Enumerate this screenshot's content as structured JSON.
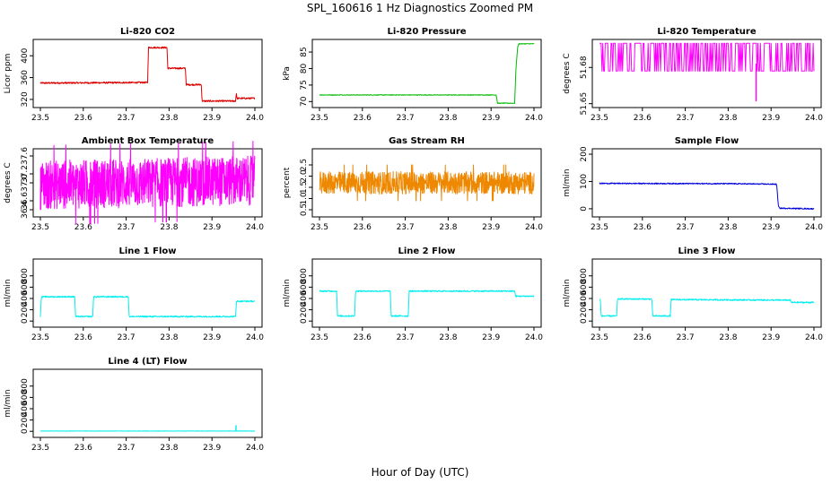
{
  "figure": {
    "title": "SPL_160616  1 Hz Diagnostics Zoomed PM",
    "xlabel": "Hour of Day (UTC)"
  },
  "chart_data": [
    {
      "type": "line",
      "title": "Li-820 CO2",
      "ylabel": "Licor ppm",
      "color": "#dd0000",
      "xlim": [
        23.5,
        24.0
      ],
      "xticks": [
        "23.5",
        "23.6",
        "23.7",
        "23.8",
        "23.9",
        "24.0"
      ],
      "ylim": [
        310,
        425
      ],
      "yticks": [
        {
          "v": 320,
          "label": "320"
        },
        {
          "v": 360,
          "label": "360"
        },
        {
          "v": 400,
          "label": "400"
        }
      ],
      "noise": 1.5,
      "x": [
        23.5,
        23.75,
        23.752,
        23.795,
        23.797,
        23.838,
        23.84,
        23.875,
        23.877,
        23.955,
        23.957,
        23.958,
        23.96,
        24.0
      ],
      "y": [
        350,
        351,
        415,
        415,
        377,
        377,
        347,
        347,
        317,
        317,
        333,
        322,
        322,
        322
      ]
    },
    {
      "type": "line",
      "title": "Li-820 Pressure",
      "ylabel": "kPa",
      "color": "#00bb00",
      "xlim": [
        23.5,
        24.0
      ],
      "xticks": [
        "23.5",
        "23.6",
        "23.7",
        "23.8",
        "23.9",
        "24.0"
      ],
      "ylim": [
        69,
        88
      ],
      "yticks": [
        {
          "v": 70,
          "label": "70"
        },
        {
          "v": 75,
          "label": "75"
        },
        {
          "v": 80,
          "label": "80"
        },
        {
          "v": 85,
          "label": "85"
        }
      ],
      "noise": 0.1,
      "x": [
        23.5,
        23.912,
        23.915,
        23.955,
        23.958,
        23.962,
        23.965,
        24.0
      ],
      "y": [
        72,
        72,
        69.5,
        69.5,
        80,
        86.5,
        87.5,
        87.5
      ]
    },
    {
      "type": "line",
      "title": "Li-820 Temperature",
      "ylabel": "degrees C",
      "color": "#ff00ff",
      "xlim": [
        23.5,
        24.0
      ],
      "xticks": [
        "23.5",
        "23.6",
        "23.7",
        "23.8",
        "23.9",
        "24.0"
      ],
      "ylim": [
        51.649,
        51.701
      ],
      "yticks": [
        {
          "v": 51.65,
          "label": "51.65"
        },
        {
          "v": 51.68,
          "label": "51.68"
        }
      ],
      "mode": "toggle",
      "levels": [
        51.7,
        51.677
      ],
      "spike": {
        "x": 23.865,
        "y": 51.652
      },
      "x": [
        23.5,
        24.0
      ],
      "y": [
        51.7,
        51.677
      ]
    },
    {
      "type": "line",
      "title": "Ambient Box Temperature",
      "ylabel": "degrees C",
      "color": "#ff00ff",
      "xlim": [
        23.5,
        24.0
      ],
      "xticks": [
        "23.5",
        "23.6",
        "23.7",
        "23.8",
        "23.9",
        "24.0"
      ],
      "ylim": [
        36.3,
        37.7
      ],
      "yticks": [
        {
          "v": 36.4,
          "label": "36.4"
        },
        {
          "v": 36.6,
          "label": "36.6"
        },
        {
          "v": 37.0,
          "label": "37.0"
        },
        {
          "v": 37.2,
          "label": "37.2"
        },
        {
          "v": 37.6,
          "label": "37.6"
        }
      ],
      "mode": "band",
      "band": [
        36.45,
        37.55
      ],
      "x": [
        23.5,
        24.0
      ],
      "y": [
        36.95,
        37.05
      ]
    },
    {
      "type": "line",
      "title": "Gas Stream RH",
      "ylabel": "percent",
      "color": "#ee8800",
      "xlim": [
        23.5,
        24.0
      ],
      "xticks": [
        "23.5",
        "23.6",
        "23.7",
        "23.8",
        "23.9",
        "24.0"
      ],
      "ylim": [
        0.3,
        3.1
      ],
      "yticks": [
        {
          "v": 0.5,
          "label": "0.5"
        },
        {
          "v": 1.0,
          "label": "1.0"
        },
        {
          "v": 1.5,
          "label": "1.5"
        },
        {
          "v": 2.0,
          "label": "2.0"
        },
        {
          "v": 2.5,
          "label": "2.5"
        }
      ],
      "mode": "band",
      "band": [
        1.2,
        2.2
      ],
      "x": [
        23.5,
        24.0
      ],
      "y": [
        1.7,
        1.7
      ]
    },
    {
      "type": "line",
      "title": "Sample Flow",
      "ylabel": "ml/min",
      "color": "#0000dd",
      "xlim": [
        23.5,
        24.0
      ],
      "xticks": [
        "23.5",
        "23.6",
        "23.7",
        "23.8",
        "23.9",
        "24.0"
      ],
      "ylim": [
        -20,
        210
      ],
      "yticks": [
        {
          "v": 0,
          "label": "0"
        },
        {
          "v": 100,
          "label": "100"
        },
        {
          "v": 200,
          "label": "200"
        }
      ],
      "noise": 2,
      "x": [
        23.5,
        23.8,
        23.913,
        23.917,
        23.92,
        24.0
      ],
      "y": [
        93,
        92,
        90,
        10,
        2,
        0
      ]
    },
    {
      "type": "line",
      "title": "Line 1 Flow",
      "ylabel": "ml/min",
      "color": "#00eeee",
      "xlim": [
        23.5,
        24.0
      ],
      "xticks": [
        "23.5",
        "23.6",
        "23.7",
        "23.8",
        "23.9",
        "24.0"
      ],
      "ylim": [
        -60,
        1050
      ],
      "yticks": [
        {
          "v": 0,
          "label": "0"
        },
        {
          "v": 200,
          "label": "200"
        },
        {
          "v": 400,
          "label": "400"
        },
        {
          "v": 600,
          "label": "600"
        },
        {
          "v": 800,
          "label": "800"
        }
      ],
      "noise": 12,
      "x": [
        23.5,
        23.502,
        23.504,
        23.58,
        23.582,
        23.622,
        23.624,
        23.705,
        23.707,
        23.955,
        23.957,
        24.0
      ],
      "y": [
        80,
        400,
        430,
        430,
        80,
        80,
        430,
        430,
        80,
        80,
        350,
        350
      ]
    },
    {
      "type": "line",
      "title": "Line 2 Flow",
      "ylabel": "ml/min",
      "color": "#00eeee",
      "xlim": [
        23.5,
        24.0
      ],
      "xticks": [
        "23.5",
        "23.6",
        "23.7",
        "23.8",
        "23.9",
        "24.0"
      ],
      "ylim": [
        -60,
        1050
      ],
      "yticks": [
        {
          "v": 0,
          "label": "0"
        },
        {
          "v": 200,
          "label": "200"
        },
        {
          "v": 400,
          "label": "400"
        },
        {
          "v": 600,
          "label": "600"
        },
        {
          "v": 800,
          "label": "800"
        }
      ],
      "noise": 12,
      "x": [
        23.5,
        23.54,
        23.542,
        23.582,
        23.584,
        23.665,
        23.667,
        23.707,
        23.709,
        23.955,
        23.957,
        24.0
      ],
      "y": [
        530,
        530,
        90,
        90,
        530,
        530,
        90,
        90,
        530,
        530,
        440,
        440
      ]
    },
    {
      "type": "line",
      "title": "Line 3 Flow",
      "ylabel": "ml/min",
      "color": "#00eeee",
      "xlim": [
        23.5,
        24.0
      ],
      "xticks": [
        "23.5",
        "23.6",
        "23.7",
        "23.8",
        "23.9",
        "24.0"
      ],
      "ylim": [
        -60,
        1050
      ],
      "yticks": [
        {
          "v": 0,
          "label": "0"
        },
        {
          "v": 200,
          "label": "200"
        },
        {
          "v": 400,
          "label": "400"
        },
        {
          "v": 600,
          "label": "600"
        },
        {
          "v": 800,
          "label": "800"
        }
      ],
      "noise": 12,
      "x": [
        23.5,
        23.502,
        23.504,
        23.54,
        23.542,
        23.622,
        23.624,
        23.665,
        23.667,
        23.945,
        23.947,
        24.0
      ],
      "y": [
        380,
        380,
        90,
        90,
        390,
        390,
        90,
        90,
        380,
        370,
        330,
        330
      ]
    },
    {
      "type": "line",
      "title": "Line 4 (LT) Flow",
      "ylabel": "ml/min",
      "color": "#00eeee",
      "xlim": [
        23.5,
        24.0
      ],
      "xticks": [
        "23.5",
        "23.6",
        "23.7",
        "23.8",
        "23.9",
        "24.0"
      ],
      "ylim": [
        -60,
        1050
      ],
      "yticks": [
        {
          "v": 0,
          "label": "0"
        },
        {
          "v": 200,
          "label": "200"
        },
        {
          "v": 400,
          "label": "400"
        },
        {
          "v": 600,
          "label": "600"
        },
        {
          "v": 800,
          "label": "800"
        }
      ],
      "noise": 3,
      "spike": {
        "x": 23.956,
        "y": 110
      },
      "x": [
        23.5,
        24.0
      ],
      "y": [
        5,
        5
      ]
    }
  ]
}
